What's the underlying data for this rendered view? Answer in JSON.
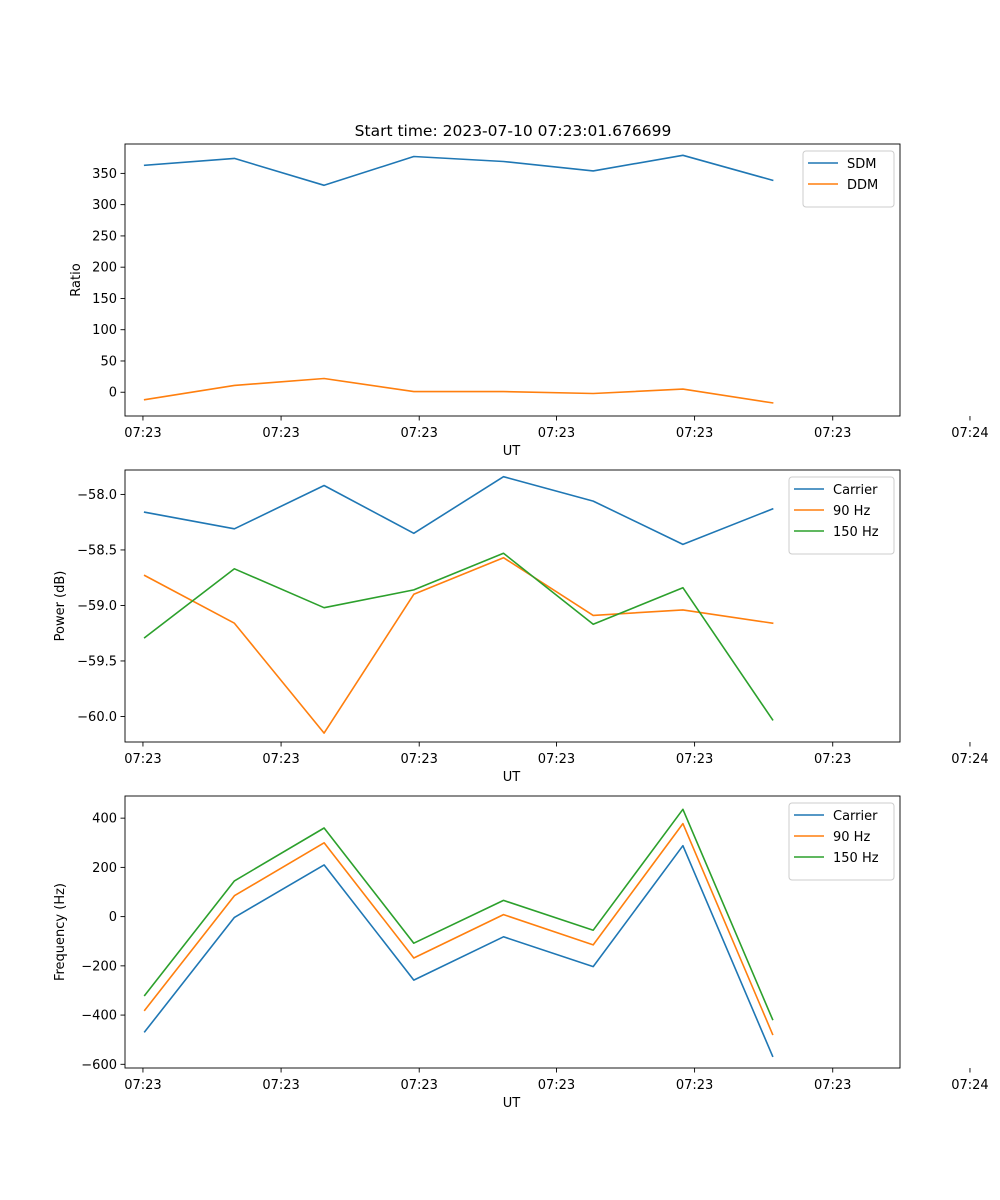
{
  "figure": {
    "title": "Start time: 2023-07-10 07:23:01.676699"
  },
  "chart_data": [
    {
      "type": "line",
      "title": "Start time: 2023-07-10 07:23:01.676699",
      "xlabel": "UT",
      "ylabel": "Ratio",
      "x": [
        1,
        2,
        3,
        4,
        5,
        6,
        7,
        8
      ],
      "xlim": [
        0.78,
        9.42
      ],
      "xticks": [
        0.98,
        2.52,
        4.06,
        5.59,
        7.13,
        8.67,
        10.2
      ],
      "xtick_labels": [
        "07:23",
        "07:23",
        "07:23",
        "07:23",
        "07:23",
        "07:23",
        "07:24"
      ],
      "ylim": [
        -38,
        397
      ],
      "yticks": [
        0,
        50,
        100,
        150,
        200,
        250,
        300,
        350
      ],
      "ytick_labels": [
        "0",
        "50",
        "100",
        "150",
        "200",
        "250",
        "300",
        "350"
      ],
      "legend_position": "top-right",
      "series": [
        {
          "name": "SDM",
          "color": "#1f77b4",
          "values": [
            363,
            374,
            331,
            377,
            369,
            354,
            379,
            339
          ]
        },
        {
          "name": "DDM",
          "color": "#ff7f0e",
          "values": [
            -12,
            11,
            22,
            1,
            1,
            -2,
            5,
            -17
          ]
        }
      ]
    },
    {
      "type": "line",
      "xlabel": "UT",
      "ylabel": "Power (dB)",
      "x": [
        1,
        2,
        3,
        4,
        5,
        6,
        7,
        8
      ],
      "xlim": [
        0.78,
        9.42
      ],
      "xticks": [
        0.98,
        2.52,
        4.06,
        5.59,
        7.13,
        8.67,
        10.2
      ],
      "xtick_labels": [
        "07:23",
        "07:23",
        "07:23",
        "07:23",
        "07:23",
        "07:23",
        "07:24"
      ],
      "ylim": [
        -60.23,
        -57.78
      ],
      "yticks": [
        -58.0,
        -58.5,
        -59.0,
        -59.5,
        -60.0
      ],
      "ytick_labels": [
        "−58.0",
        "−58.5",
        "−59.0",
        "−59.5",
        "−60.0"
      ],
      "legend_position": "top-right",
      "series": [
        {
          "name": "Carrier",
          "color": "#1f77b4",
          "values": [
            -58.16,
            -58.31,
            -57.92,
            -58.35,
            -57.84,
            -58.06,
            -58.45,
            -58.13
          ]
        },
        {
          "name": "90 Hz",
          "color": "#ff7f0e",
          "values": [
            -58.73,
            -59.16,
            -60.15,
            -58.9,
            -58.57,
            -59.09,
            -59.04,
            -59.16
          ]
        },
        {
          "name": "150 Hz",
          "color": "#2ca02c",
          "values": [
            -59.29,
            -58.67,
            -59.02,
            -58.86,
            -58.53,
            -59.17,
            -58.84,
            -60.03
          ]
        }
      ]
    },
    {
      "type": "line",
      "xlabel": "UT",
      "ylabel": "Frequency (Hz)",
      "x": [
        1,
        2,
        3,
        4,
        5,
        6,
        7,
        8
      ],
      "xlim": [
        0.78,
        9.42
      ],
      "xticks": [
        0.98,
        2.52,
        4.06,
        5.59,
        7.13,
        8.67,
        10.2
      ],
      "xtick_labels": [
        "07:23",
        "07:23",
        "07:23",
        "07:23",
        "07:23",
        "07:23",
        "07:24"
      ],
      "ylim": [
        -615,
        490
      ],
      "yticks": [
        400,
        200,
        0,
        -200,
        -400,
        -600
      ],
      "ytick_labels": [
        "400",
        "200",
        "0",
        "−200",
        "−400",
        "−600"
      ],
      "legend_position": "top-right",
      "series": [
        {
          "name": "Carrier",
          "color": "#1f77b4",
          "values": [
            -468,
            -3,
            210,
            -258,
            -82,
            -203,
            288,
            -567
          ]
        },
        {
          "name": "90 Hz",
          "color": "#ff7f0e",
          "values": [
            -380,
            85,
            300,
            -168,
            8,
            -115,
            378,
            -478
          ]
        },
        {
          "name": "150 Hz",
          "color": "#2ca02c",
          "values": [
            -320,
            145,
            360,
            -108,
            66,
            -55,
            436,
            -418
          ]
        }
      ]
    }
  ]
}
